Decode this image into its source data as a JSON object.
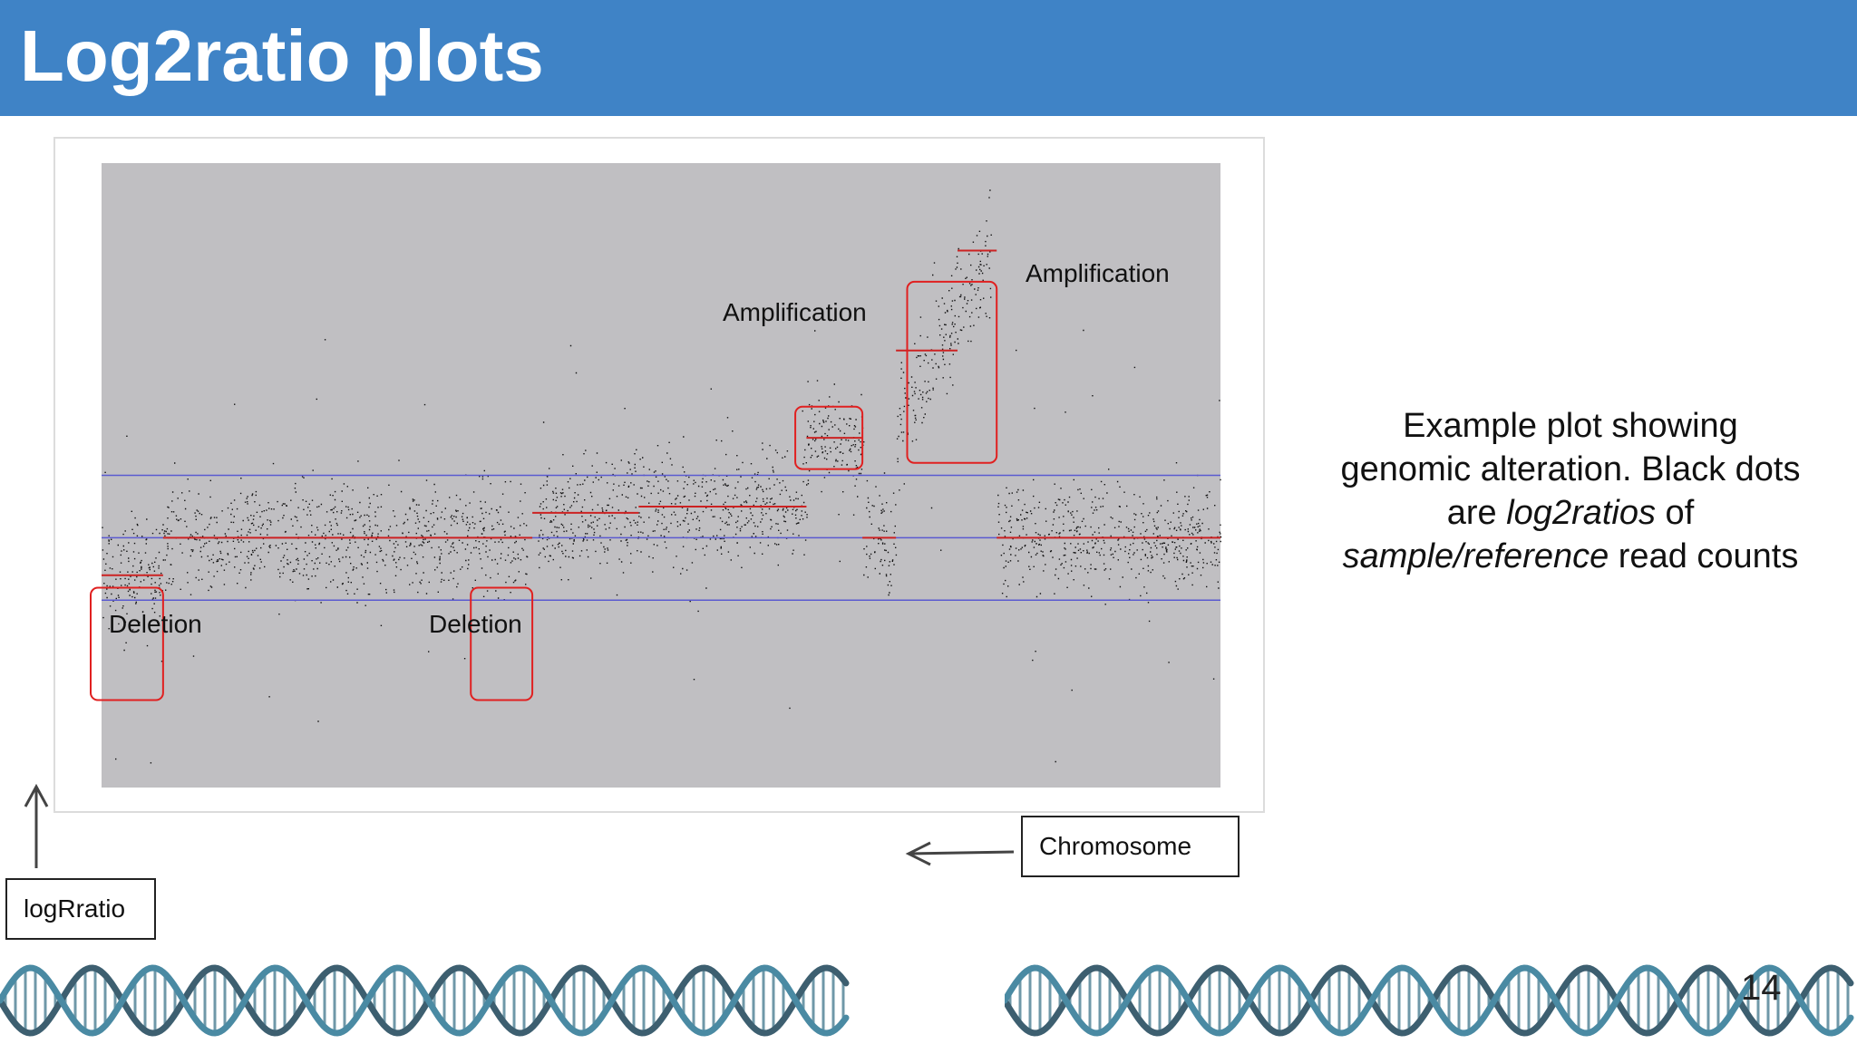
{
  "slide": {
    "title": "Log2ratio plots",
    "page_number": "14",
    "header_color": "#3f83c6"
  },
  "annotations": {
    "amplification_1": "Amplification",
    "amplification_2": "Amplification",
    "deletion_1": "Deletion",
    "deletion_2": "Deletion",
    "y_axis_box": "logRratio",
    "x_axis_box": "Chromosome"
  },
  "caption": {
    "line1": "Example plot showing",
    "line2": "genomic alteration. Black dots",
    "line3_pre": "are ",
    "line3_italic": "log2ratios",
    "line3_post": " of",
    "line4_italic": "sample/reference",
    "line4_post": " read counts"
  },
  "chart_data": {
    "type": "scatter",
    "title": "",
    "xlabel": "Chromosome",
    "ylabel": "Log2 ratio",
    "ylim": [
      -2,
      3
    ],
    "reference_lines": [
      {
        "y": 0.5,
        "color": "#5a5ad0"
      },
      {
        "y": 0,
        "color": "#5a5ad0"
      },
      {
        "y": -0.5,
        "color": "#5a5ad0"
      }
    ],
    "segment_color": "#cc2222",
    "point_color": "#111111",
    "panel_color": "#c0bfc2",
    "segments": [
      {
        "x": [
          0,
          0.055
        ],
        "y": -0.3
      },
      {
        "x": [
          0.055,
          0.38
        ],
        "y": 0.0
      },
      {
        "x": [
          0.38,
          0.385
        ],
        "y": 0.0
      },
      {
        "x": [
          0.385,
          0.48
        ],
        "y": 0.2
      },
      {
        "x": [
          0.48,
          0.63
        ],
        "y": 0.25
      },
      {
        "x": [
          0.63,
          0.68
        ],
        "y": 0.8
      },
      {
        "x": [
          0.68,
          0.71
        ],
        "y": 0.0
      },
      {
        "x": [
          0.71,
          0.765
        ],
        "y": 1.5
      },
      {
        "x": [
          0.765,
          0.8
        ],
        "y": 2.3
      },
      {
        "x": [
          0.8,
          1.0
        ],
        "y": 0.0
      }
    ],
    "highlight_boxes": [
      {
        "label": "Deletion",
        "x": [
          0.0,
          0.055
        ],
        "y": [
          -1.3,
          -0.4
        ]
      },
      {
        "label": "Deletion",
        "x": [
          0.33,
          0.385
        ],
        "y": [
          -1.3,
          -0.4
        ]
      },
      {
        "label": "Amplification",
        "x": [
          0.62,
          0.68
        ],
        "y": [
          0.55,
          1.05
        ]
      },
      {
        "label": "Amplification",
        "x": [
          0.72,
          0.8
        ],
        "y": [
          0.6,
          2.05
        ]
      }
    ]
  }
}
